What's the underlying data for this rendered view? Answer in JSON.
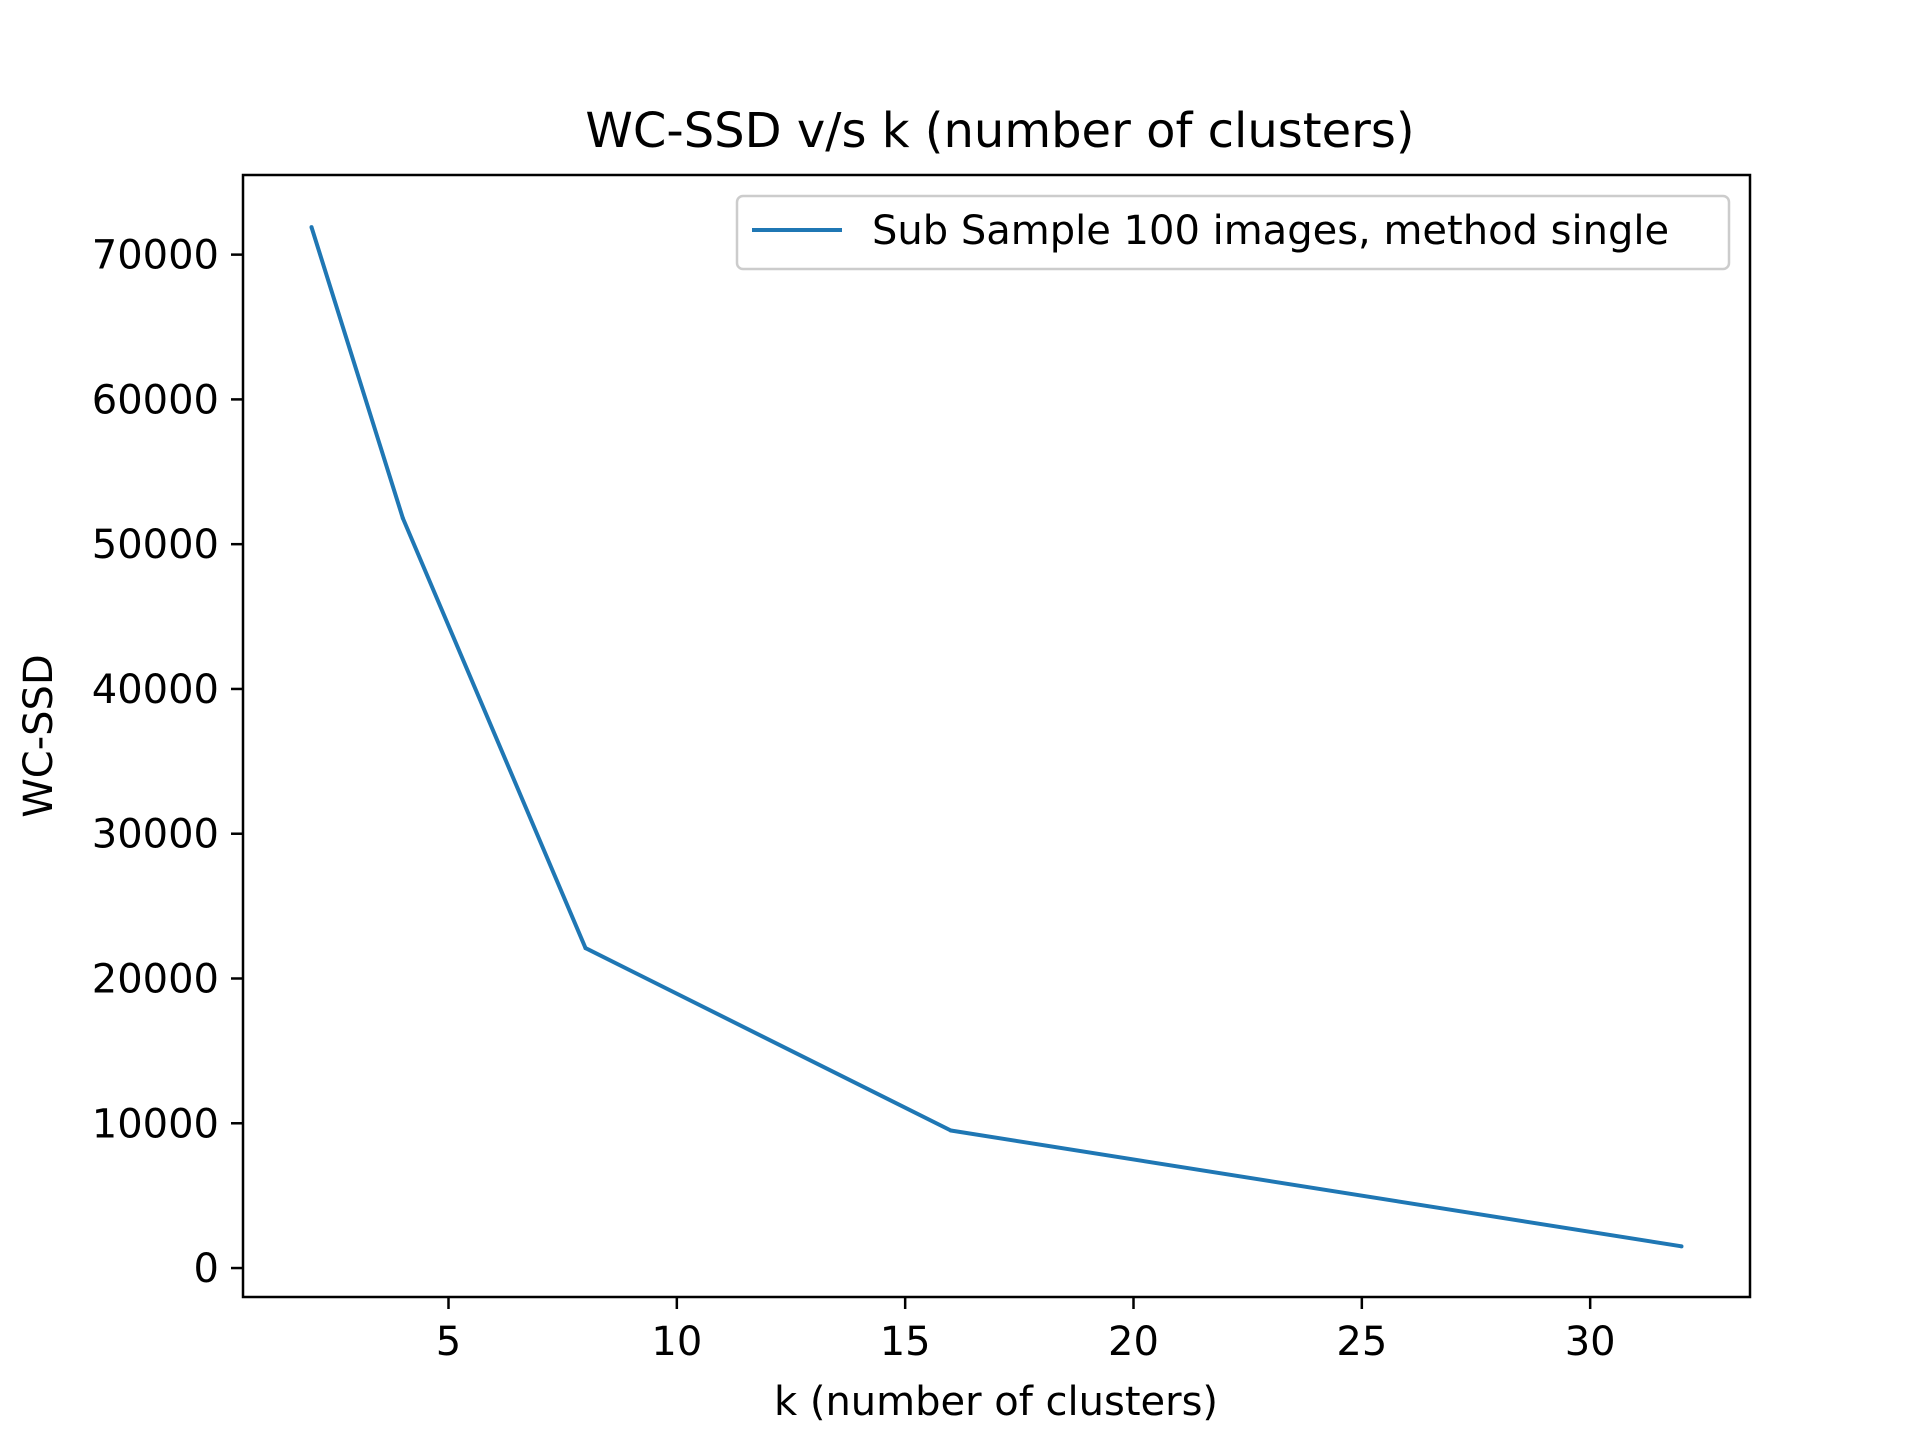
{
  "chart_data": {
    "type": "line",
    "title": "WC-SSD v/s k (number of clusters)",
    "xlabel": "k (number of clusters)",
    "ylabel": "WC-SSD",
    "xlim": [
      0.5,
      33.5
    ],
    "ylim": [
      -2000,
      75500
    ],
    "xticks": [
      5,
      10,
      15,
      20,
      25,
      30
    ],
    "yticks": [
      0,
      10000,
      20000,
      30000,
      40000,
      50000,
      60000,
      70000
    ],
    "grid": false,
    "legend": "upper right",
    "series": [
      {
        "name": "Sub Sample 100 images, method single",
        "color": "#1f77b4",
        "x": [
          2,
          4,
          8,
          16,
          32
        ],
        "y": [
          71900,
          51800,
          22100,
          9500,
          1500
        ]
      }
    ]
  }
}
